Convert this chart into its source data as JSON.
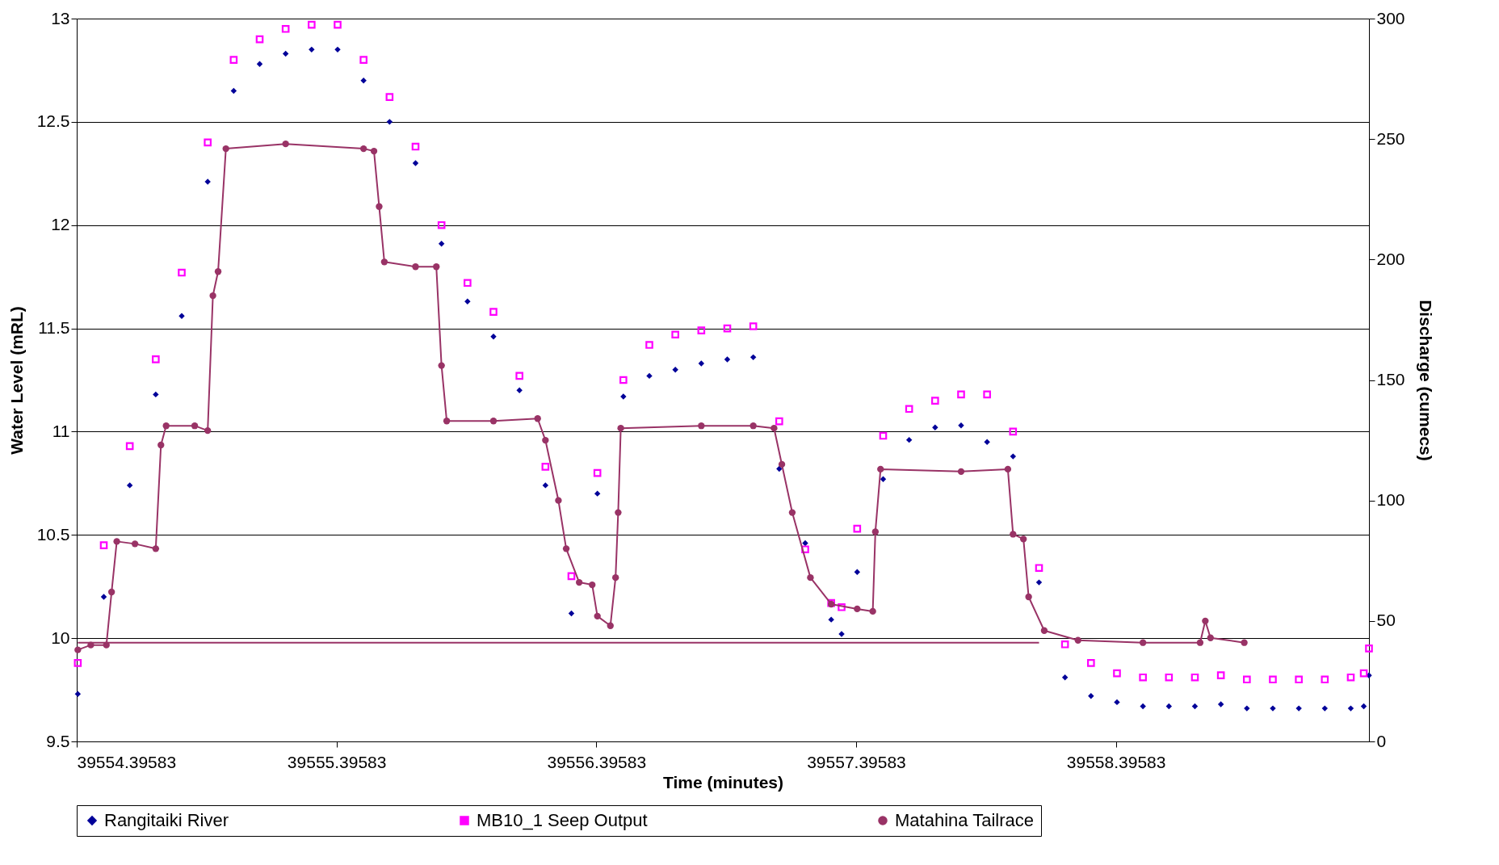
{
  "chart_data": {
    "type": "scatter",
    "xlabel": "Time (minutes)",
    "ylabel": "Water Level (mRL)",
    "y2label": "Discharge (cumecs)",
    "x": [
      39554.4,
      39554.5,
      39554.6,
      39554.7,
      39554.8,
      39554.9,
      39555.0,
      39555.1,
      39555.2,
      39555.3,
      39555.4,
      39555.5,
      39555.6,
      39555.7,
      39555.8,
      39555.9,
      39556.0,
      39556.1,
      39556.2,
      39556.3,
      39556.4,
      39556.5,
      39556.6,
      39556.7,
      39556.8,
      39556.9,
      39557.0,
      39557.1,
      39557.2,
      39557.3,
      39557.34,
      39557.4,
      39557.5,
      39557.6,
      39557.7,
      39557.8,
      39557.9,
      39558.0,
      39558.1,
      39558.2,
      39558.3,
      39558.4,
      39558.5,
      39558.6,
      39558.7,
      39558.8,
      39558.9,
      39559.0,
      39559.1,
      39559.2,
      39559.3,
      39559.35,
      39559.37
    ],
    "series": [
      {
        "name": "Rangitaiki River",
        "color": "#000099",
        "marker": "diamond",
        "values": [
          9.73,
          10.2,
          10.74,
          11.18,
          11.56,
          12.21,
          12.65,
          12.78,
          12.83,
          12.85,
          12.85,
          12.7,
          12.5,
          12.3,
          11.91,
          11.63,
          11.46,
          11.2,
          10.74,
          10.12,
          10.7,
          11.17,
          11.27,
          11.3,
          11.33,
          11.35,
          11.36,
          10.82,
          10.46,
          10.09,
          10.02,
          10.32,
          10.77,
          10.96,
          11.02,
          11.03,
          10.95,
          10.88,
          10.27,
          9.81,
          9.72,
          9.69,
          9.67,
          9.67,
          9.67,
          9.68,
          9.66,
          9.66,
          9.66,
          9.66,
          9.66,
          9.67,
          9.82
        ]
      },
      {
        "name": "MB10_1 Seep Output",
        "color": "#ff00ff",
        "marker": "square",
        "values": [
          9.88,
          10.45,
          10.93,
          11.35,
          11.77,
          12.4,
          12.8,
          12.9,
          12.95,
          12.97,
          12.97,
          12.8,
          12.62,
          12.38,
          12.0,
          11.72,
          11.58,
          11.27,
          10.83,
          10.3,
          10.8,
          11.25,
          11.42,
          11.47,
          11.49,
          11.5,
          11.51,
          11.05,
          10.43,
          10.17,
          10.15,
          10.53,
          10.98,
          11.11,
          11.15,
          11.18,
          11.18,
          11.0,
          10.34,
          9.97,
          9.88,
          9.83,
          9.81,
          9.81,
          9.81,
          9.82,
          9.8,
          9.8,
          9.8,
          9.8,
          9.81,
          9.83,
          9.95
        ]
      },
      {
        "name": "Matahina Tailrace",
        "color": "#993366",
        "type": "line",
        "marker": "circle",
        "axis": "y2",
        "x": [
          39554.4,
          39554.45,
          39554.51,
          39554.53,
          39554.55,
          39554.62,
          39554.7,
          39554.72,
          39554.74,
          39554.85,
          39554.9,
          39554.92,
          39554.94,
          39554.97,
          39555.2,
          39555.5,
          39555.54,
          39555.56,
          39555.58,
          39555.7,
          39555.78,
          39555.8,
          39555.82,
          39556.0,
          39556.17,
          39556.2,
          39556.25,
          39556.28,
          39556.33,
          39556.38,
          39556.4,
          39556.45,
          39556.47,
          39556.48,
          39556.49,
          39556.8,
          39557.0,
          39557.08,
          39557.11,
          39557.15,
          39557.22,
          39557.3,
          39557.4,
          39557.46,
          39557.47,
          39557.49,
          39557.8,
          39557.98,
          39558.0,
          39558.04,
          39558.06,
          39558.12,
          39558.25,
          39558.5,
          39558.72,
          39558.74,
          39558.76,
          39558.89
        ],
        "values": [
          38,
          40,
          40,
          62,
          83,
          82,
          80,
          123,
          131,
          131,
          129,
          185,
          195,
          246,
          248,
          246,
          245,
          222,
          199,
          197,
          197,
          156,
          133,
          133,
          134,
          125,
          100,
          80,
          66,
          65,
          52,
          48,
          68,
          95,
          130,
          131,
          131,
          130,
          115,
          95,
          68,
          57,
          55,
          54,
          87,
          113,
          112,
          113,
          86,
          84,
          60,
          46,
          42,
          41,
          41,
          50,
          43,
          41
        ]
      },
      {
        "color": "#993366",
        "type": "line",
        "marker": "none",
        "axis": "y2",
        "x": [
          39554.4,
          39558.1
        ],
        "values": [
          41,
          41
        ]
      }
    ],
    "xlim": [
      39554.39583,
      39559.37
    ],
    "xticks": [
      39554.39583,
      39555.39583,
      39556.39583,
      39557.39583,
      39558.39583
    ],
    "ylim": [
      9.5,
      13
    ],
    "yticks": [
      9.5,
      10,
      10.5,
      11,
      11.5,
      12,
      12.5,
      13
    ],
    "y2lim": [
      0,
      300
    ],
    "y2ticks": [
      0,
      50,
      100,
      150,
      200,
      250,
      300
    ],
    "grid": "y",
    "legend": "bottom"
  }
}
